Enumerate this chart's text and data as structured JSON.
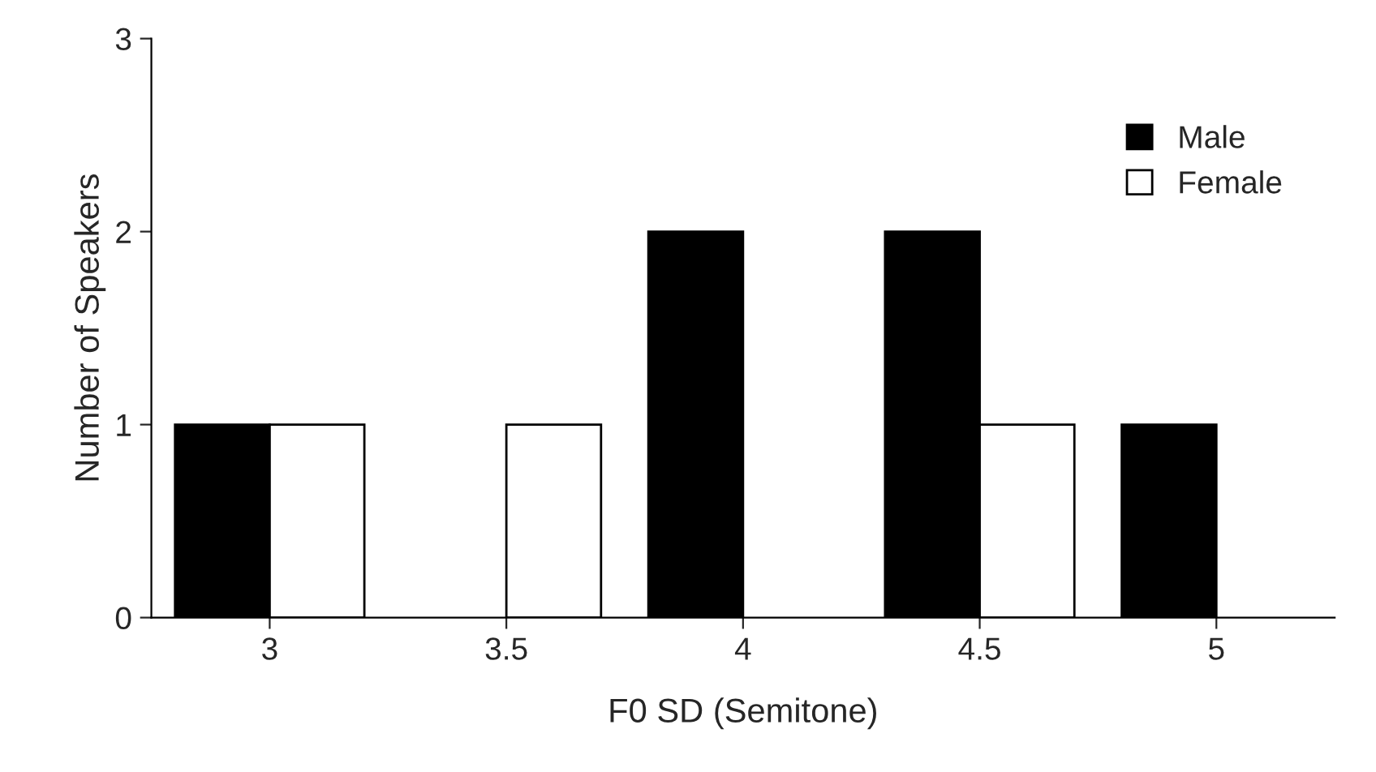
{
  "chart_data": {
    "type": "bar",
    "xlabel": "F0 SD (Semitone)",
    "ylabel": "Number of Speakers",
    "categories": [
      "3",
      "3.5",
      "4",
      "4.5",
      "5"
    ],
    "series": [
      {
        "name": "Male",
        "color": "#000000",
        "values": [
          1,
          0,
          2,
          2,
          1
        ]
      },
      {
        "name": "Female",
        "color": "#ffffff",
        "values": [
          1,
          1,
          0,
          1,
          0
        ]
      }
    ],
    "ylim": [
      0,
      3
    ],
    "yticks": [
      0,
      1,
      2,
      3
    ],
    "grid": false,
    "legend": "top right"
  }
}
